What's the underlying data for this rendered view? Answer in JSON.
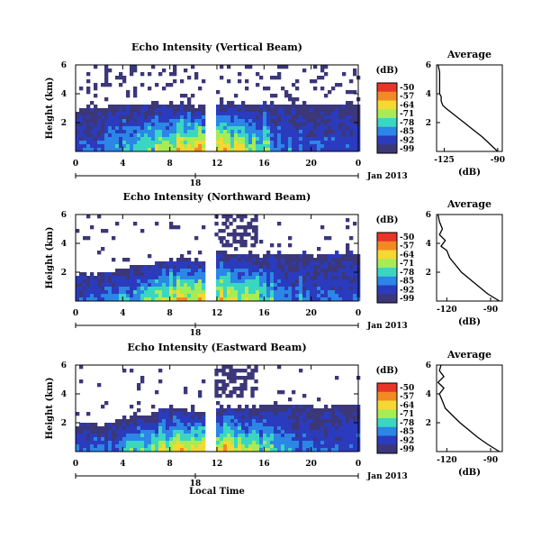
{
  "chart_data": {
    "type": "heatmap",
    "colorbar": {
      "unit_label": "(dB)",
      "ticks": [
        "-50",
        "-57",
        "-64",
        "-71",
        "-78",
        "-85",
        "-92",
        "-99"
      ],
      "colors": [
        "#e8352a",
        "#f28a24",
        "#f5d832",
        "#a5ec55",
        "#3ad6c2",
        "#2b86e6",
        "#2b3bbd",
        "#3b3778"
      ]
    },
    "panels": [
      {
        "title": "Echo Intensity (Vertical Beam)",
        "ylabel": "Height (km)",
        "yticks": [
          "6",
          "4",
          "2"
        ],
        "ylim": [
          0,
          6
        ],
        "xticks": [
          "0",
          "4",
          "8",
          "12",
          "16",
          "20",
          "0"
        ],
        "xlim_hours": [
          0,
          24
        ],
        "date_tick": "18",
        "date_label": "Jan 2013",
        "data_gap_hours": [
          11.2,
          11.8
        ],
        "echo_top_km": [
          3.1,
          3.2,
          3.1,
          3.3,
          3.4,
          3.2,
          3.5,
          3.4,
          3.3,
          3.4,
          3.3,
          3.2,
          3.5,
          3.4,
          3.3,
          3.4,
          3.5,
          3.3,
          3.4,
          3.5,
          3.3,
          3.4,
          3.3,
          3.4,
          3.3
        ],
        "average_profile": {
          "title": "Average",
          "xlabel": "(dB)",
          "xticks": [
            "-125",
            "-90"
          ],
          "xlim": [
            -130,
            -87
          ],
          "yticks": [
            "6",
            "4",
            "2"
          ],
          "height_km": [
            0.0,
            0.5,
            1.0,
            1.5,
            2.0,
            2.5,
            3.0,
            3.2,
            3.5,
            3.8,
            4.0,
            4.5,
            5.0,
            5.5,
            6.0
          ],
          "db": [
            -90,
            -95,
            -100,
            -106,
            -112,
            -118,
            -124,
            -126,
            -127,
            -127,
            -128,
            -128,
            -128,
            -128,
            -129
          ]
        }
      },
      {
        "title": "Echo Intensity (Northward Beam)",
        "ylabel": "Height (km)",
        "yticks": [
          "6",
          "4",
          "2"
        ],
        "ylim": [
          0,
          6
        ],
        "xticks": [
          "0",
          "4",
          "8",
          "12",
          "16",
          "20",
          "0"
        ],
        "xlim_hours": [
          0,
          24
        ],
        "date_tick": "18",
        "date_label": "Jan 2013",
        "data_gap_hours": [
          11.2,
          11.8
        ],
        "echo_top_km": [
          2.0,
          2.0,
          2.1,
          2.1,
          2.5,
          2.6,
          2.6,
          2.9,
          3.0,
          3.1,
          3.0,
          2.8,
          3.6,
          3.4,
          3.3,
          3.3,
          3.4,
          3.5,
          3.4,
          3.5,
          3.3,
          3.5,
          3.4,
          3.6,
          3.4
        ],
        "average_profile": {
          "title": "Average",
          "xlabel": "(dB)",
          "xticks": [
            "-120",
            "-90"
          ],
          "xlim": [
            -127,
            -82
          ],
          "yticks": [
            "6",
            "4",
            "2"
          ],
          "height_km": [
            0.0,
            0.5,
            1.0,
            1.5,
            2.0,
            2.5,
            3.0,
            3.5,
            3.8,
            4.2,
            4.6,
            5.0,
            5.5,
            6.0
          ],
          "db": [
            -84,
            -92,
            -98,
            -104,
            -110,
            -114,
            -118,
            -120,
            -124,
            -121,
            -125,
            -123,
            -125,
            -126
          ]
        }
      },
      {
        "title": "Echo Intensity (Eastward Beam)",
        "ylabel": "Height (km)",
        "yticks": [
          "6",
          "4",
          "2"
        ],
        "ylim": [
          0,
          6
        ],
        "xticks": [
          "0",
          "4",
          "8",
          "12",
          "16",
          "20",
          "0"
        ],
        "xlim_hours": [
          0,
          24
        ],
        "date_tick": "18",
        "date_label": "Jan 2013",
        "data_gap_hours": [
          11.2,
          11.8
        ],
        "echo_top_km": [
          2.0,
          2.1,
          2.0,
          2.2,
          2.5,
          2.7,
          2.8,
          3.0,
          3.2,
          3.1,
          2.9,
          2.7,
          3.3,
          3.2,
          3.1,
          3.2,
          3.3,
          3.4,
          3.3,
          3.4,
          3.3,
          3.2,
          3.3,
          3.4,
          3.3
        ],
        "average_profile": {
          "title": "Average",
          "xlabel": "(dB)",
          "xticks": [
            "-120",
            "-90"
          ],
          "xlim": [
            -127,
            -82
          ],
          "yticks": [
            "6",
            "4",
            "2"
          ],
          "height_km": [
            0.0,
            0.5,
            1.0,
            1.5,
            2.0,
            2.5,
            3.0,
            3.5,
            4.0,
            4.4,
            4.8,
            5.2,
            5.6,
            6.0
          ],
          "db": [
            -84,
            -92,
            -99,
            -105,
            -111,
            -116,
            -121,
            -123,
            -125,
            -122,
            -126,
            -122,
            -125,
            -124
          ]
        }
      }
    ],
    "shared_xlabel": "Local Time"
  }
}
